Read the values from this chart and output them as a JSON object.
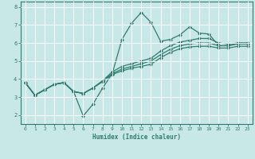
{
  "xlabel": "Humidex (Indice chaleur)",
  "bg_color": "#c8e8e8",
  "grid_color": "#ffffff",
  "line_color": "#2e7d6e",
  "xlim": [
    -0.5,
    23.5
  ],
  "ylim": [
    1.5,
    8.3
  ],
  "xticks": [
    0,
    1,
    2,
    3,
    4,
    5,
    6,
    7,
    8,
    9,
    10,
    11,
    12,
    13,
    14,
    15,
    16,
    17,
    18,
    19,
    20,
    21,
    22,
    23
  ],
  "yticks": [
    2,
    3,
    4,
    5,
    6,
    7,
    8
  ],
  "lines": [
    {
      "x": [
        0,
        1,
        2,
        3,
        4,
        5,
        6,
        7,
        8,
        9,
        10,
        11,
        12,
        13,
        14,
        15,
        16,
        17,
        18,
        19,
        20,
        21,
        22,
        23
      ],
      "y": [
        3.8,
        3.1,
        3.4,
        3.7,
        3.8,
        3.3,
        1.95,
        2.6,
        3.5,
        4.3,
        6.2,
        7.1,
        7.7,
        7.15,
        6.1,
        6.2,
        6.45,
        6.9,
        6.55,
        6.5,
        5.85,
        5.85,
        6.0,
        6.0
      ],
      "marker": "D",
      "markersize": 2.0,
      "linewidth": 0.9
    },
    {
      "x": [
        0,
        1,
        2,
        3,
        4,
        5,
        6,
        7,
        8,
        9,
        10,
        11,
        12,
        13,
        14,
        15,
        16,
        17,
        18,
        19,
        20,
        21,
        22,
        23
      ],
      "y": [
        3.8,
        3.1,
        3.4,
        3.7,
        3.8,
        3.3,
        3.2,
        3.5,
        3.9,
        4.4,
        4.7,
        4.85,
        5.0,
        5.15,
        5.55,
        5.85,
        6.05,
        6.15,
        6.25,
        6.25,
        6.0,
        5.95,
        6.0,
        6.0
      ],
      "marker": "D",
      "markersize": 2.0,
      "linewidth": 0.9
    },
    {
      "x": [
        0,
        1,
        2,
        3,
        4,
        5,
        6,
        7,
        8,
        9,
        10,
        11,
        12,
        13,
        14,
        15,
        16,
        17,
        18,
        19,
        20,
        21,
        22,
        23
      ],
      "y": [
        3.8,
        3.1,
        3.4,
        3.7,
        3.8,
        3.3,
        3.2,
        3.5,
        3.9,
        4.3,
        4.55,
        4.7,
        4.85,
        5.0,
        5.35,
        5.65,
        5.85,
        5.95,
        6.0,
        6.0,
        5.85,
        5.85,
        5.95,
        5.95
      ],
      "marker": "D",
      "markersize": 2.0,
      "linewidth": 0.9
    },
    {
      "x": [
        0,
        1,
        2,
        3,
        4,
        5,
        6,
        7,
        8,
        9,
        10,
        11,
        12,
        13,
        14,
        15,
        16,
        17,
        18,
        19,
        20,
        21,
        22,
        23
      ],
      "y": [
        3.8,
        3.1,
        3.4,
        3.7,
        3.8,
        3.3,
        3.2,
        3.5,
        3.85,
        4.25,
        4.45,
        4.6,
        4.7,
        4.82,
        5.18,
        5.48,
        5.68,
        5.78,
        5.82,
        5.82,
        5.72,
        5.72,
        5.82,
        5.82
      ],
      "marker": "D",
      "markersize": 2.0,
      "linewidth": 0.9
    }
  ]
}
